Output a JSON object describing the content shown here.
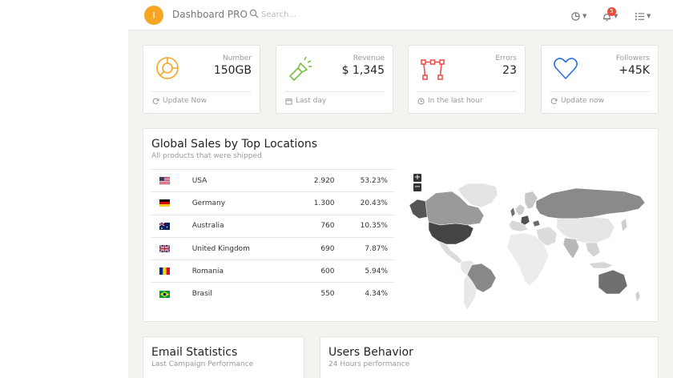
{
  "navbar": {
    "logo_letter": "I",
    "title": "Dashboard PRO",
    "search_placeholder": "Search...",
    "notification_count": "5"
  },
  "stats": [
    {
      "label": "Number",
      "value": "150GB",
      "footer": "Update Now",
      "icon": "pie-chart-icon",
      "color": "#f5a623"
    },
    {
      "label": "Revenue",
      "value": "$ 1,345",
      "footer": "Last day",
      "icon": "flashlight-icon",
      "color": "#7ac143"
    },
    {
      "label": "Errors",
      "value": "23",
      "footer": "In the last hour",
      "icon": "vector-nodes-icon",
      "color": "#ef5350"
    },
    {
      "label": "Followers",
      "value": "+45K",
      "footer": "Update now",
      "icon": "heart-icon",
      "color": "#2a6fdb"
    }
  ],
  "sales": {
    "title": "Global Sales by Top Locations",
    "subtitle": "All products that were shipped",
    "rows": [
      {
        "country": "USA",
        "value": "2.920",
        "percent": "53.23%"
      },
      {
        "country": "Germany",
        "value": "1.300",
        "percent": "20.43%"
      },
      {
        "country": "Australia",
        "value": "760",
        "percent": "10.35%"
      },
      {
        "country": "United Kingdom",
        "value": "690",
        "percent": "7.87%"
      },
      {
        "country": "Romania",
        "value": "600",
        "percent": "5.94%"
      },
      {
        "country": "Brasil",
        "value": "550",
        "percent": "4.34%"
      }
    ],
    "zoom_in": "+",
    "zoom_out": "−"
  },
  "bottom_cards": [
    {
      "title": "Email Statistics",
      "subtitle": "Last Campaign Performance"
    },
    {
      "title": "Users Behavior",
      "subtitle": "24 Hours performance"
    }
  ]
}
